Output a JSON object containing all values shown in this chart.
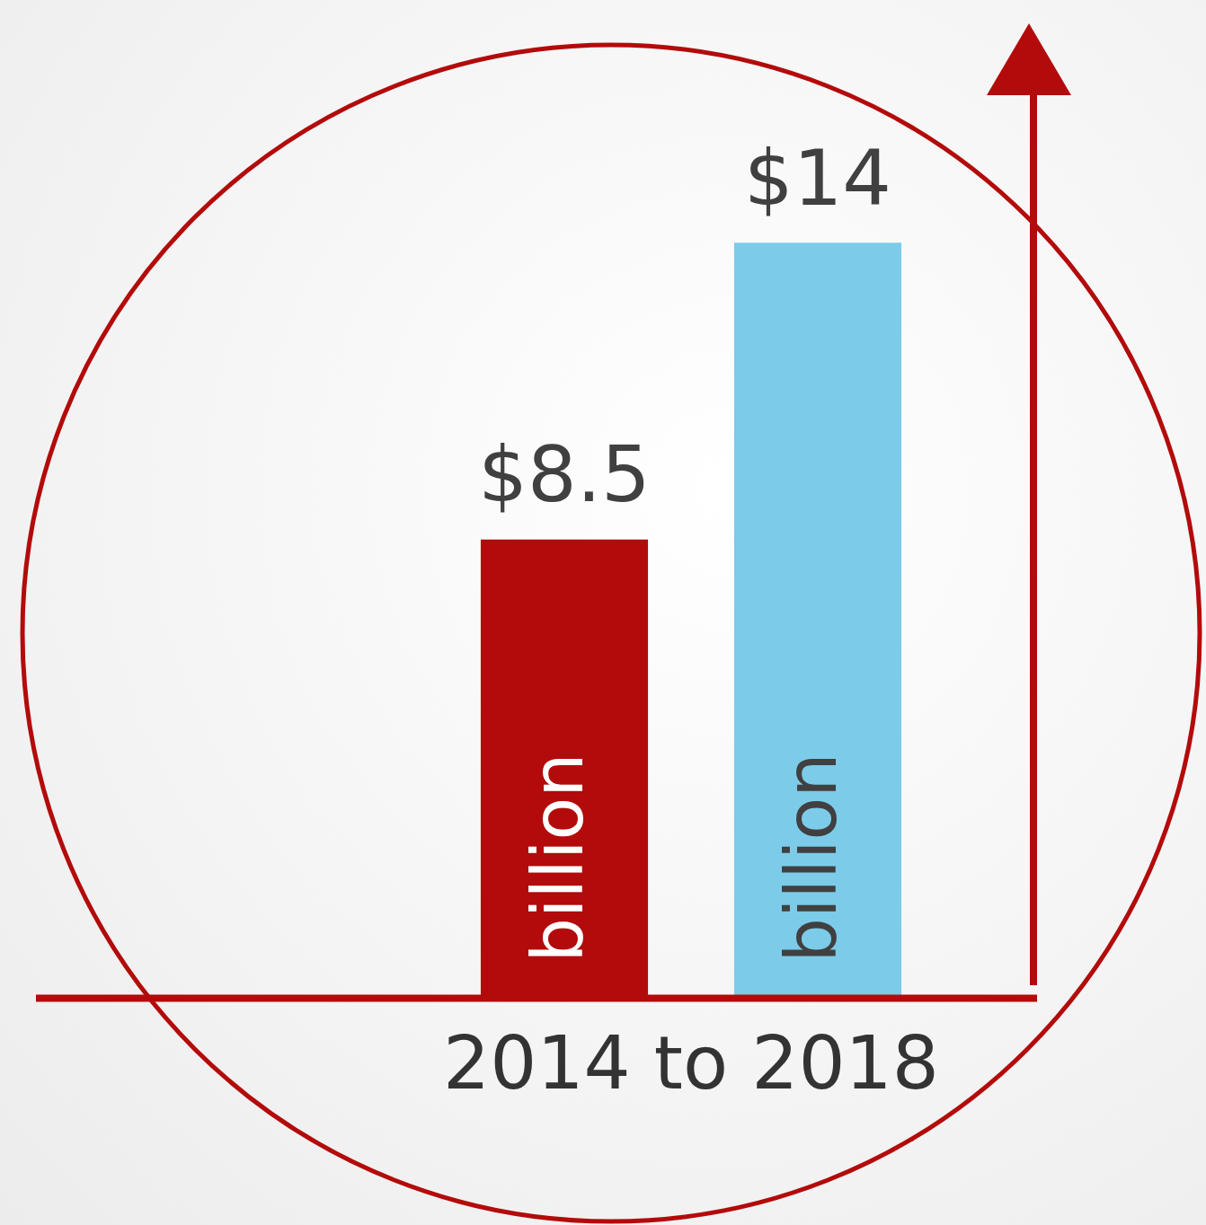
{
  "chart_data": {
    "type": "bar",
    "categories": [
      null,
      null
    ],
    "values": [
      8.5,
      14
    ],
    "colors": [
      "#b30b0b",
      "#7ccbe9"
    ],
    "xlabel": "2014 to 2018",
    "value_labels": [
      "$8.5",
      "$14"
    ],
    "annotations": [
      "billion",
      "billion"
    ],
    "grid": false,
    "legend": false,
    "tick_labels": false
  }
}
